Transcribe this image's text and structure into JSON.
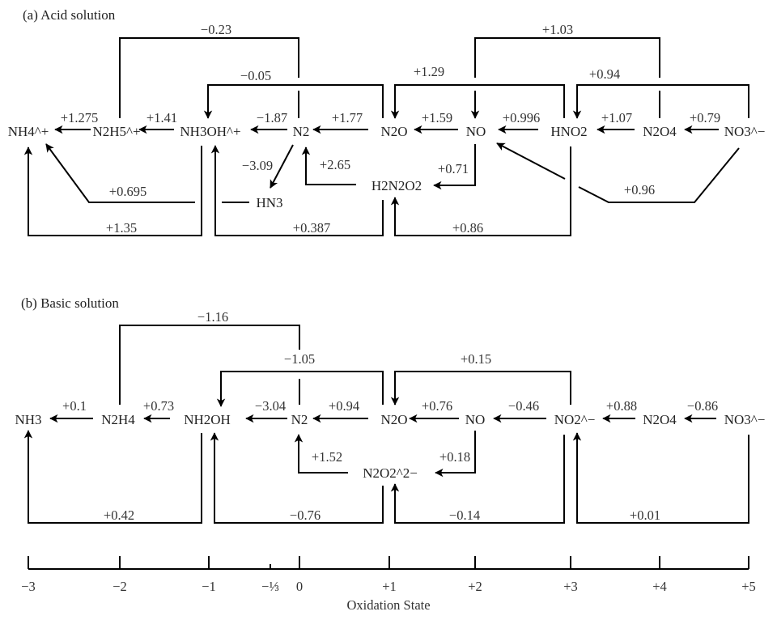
{
  "acid": {
    "title": "(a) Acid solution",
    "species": {
      "nh4": "NH4^+",
      "n2h5": "N2H5^+",
      "nh3oh": "NH3OH^+",
      "n2": "N2",
      "n2o": "N2O",
      "no": "NO",
      "hno2": "HNO2",
      "n2o4": "N2O4",
      "no3": "NO3^−",
      "hn3": "HN3",
      "h2n2o2": "H2N2O2"
    },
    "potentials": {
      "n2h5_nh4": "+1.275",
      "nh3oh_n2h5": "+1.41",
      "n2_nh3oh": "−1.87",
      "n2o_n2": "+1.77",
      "no_n2o": "+1.59",
      "hno2_no": "+0.996",
      "n2o4_hno2": "+1.07",
      "no3_n2o4": "+0.79",
      "n2_n2h5": "−0.23",
      "n2o_nh3oh": "−0.05",
      "hno2_n2o": "+1.29",
      "n2o4_no": "+1.03",
      "no3_hno2": "+0.94",
      "hn3_nh4": "+0.695",
      "nh3oh_nh4": "+1.35",
      "n2_hn3": "−3.09",
      "h2n2o2_n2": "+2.65",
      "no_h2n2o2": "+0.71",
      "h2n2o2_nh3oh": "+0.387",
      "hno2_h2n2o2": "+0.86",
      "no3_no": "+0.96"
    }
  },
  "basic": {
    "title": "(b) Basic solution",
    "species": {
      "nh3": "NH3",
      "n2h4": "N2H4",
      "nh2oh": "NH2OH",
      "n2": "N2",
      "n2o": "N2O",
      "no": "NO",
      "no2": "NO2^−",
      "n2o4": "N2O4",
      "no3": "NO3^−",
      "n2o2": "N2O2^2−"
    },
    "potentials": {
      "n2h4_nh3": "+0.1",
      "nh2oh_n2h4": "+0.73",
      "n2_nh2oh": "−3.04",
      "n2o_n2": "+0.94",
      "no_n2o": "+0.76",
      "no2_no": "−0.46",
      "n2o4_no2": "+0.88",
      "no3_n2o4": "−0.86",
      "n2_n2h4": "−1.16",
      "n2o_nh2oh": "−1.05",
      "no2_n2o": "+0.15",
      "n2o2_n2": "+1.52",
      "no_n2o2": "+0.18",
      "nh2oh_nh3": "+0.42",
      "n2o2_nh2oh": "−0.76",
      "no2_n2o2": "−0.14",
      "no3_no2": "+0.01"
    }
  },
  "axis": {
    "label": "Oxidation State",
    "ticks": [
      "−3",
      "−2",
      "−1",
      "−⅓",
      "0",
      "+1",
      "+2",
      "+3",
      "+4",
      "+5"
    ]
  }
}
